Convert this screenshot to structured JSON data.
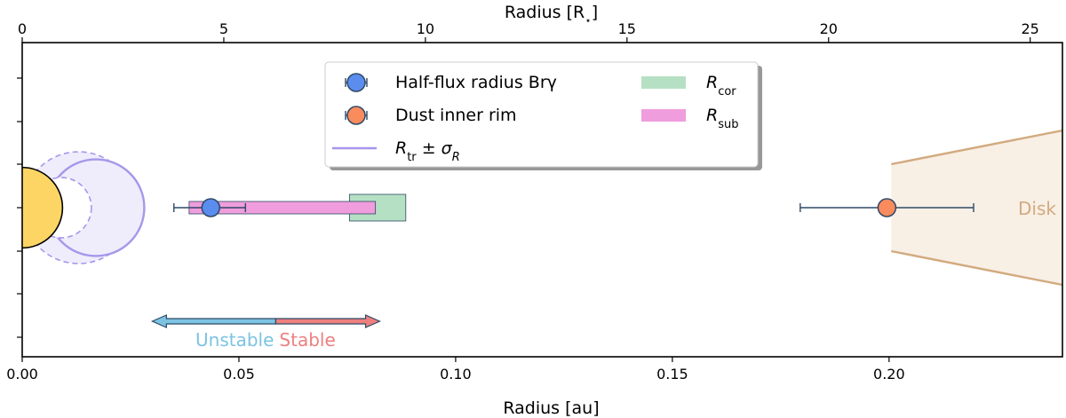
{
  "chart_data": {
    "type": "scatter",
    "xlabel": "Radius [au]",
    "x2label": "Radius [R",
    "x2label_star": "⋆",
    "x2label_close": "]",
    "xlim": [
      0.0,
      0.24
    ],
    "x_ticks": [
      0.0,
      0.05,
      0.1,
      0.15,
      0.2
    ],
    "x_tick_labels": [
      "0.00",
      "0.05",
      "0.10",
      "0.15",
      "0.20"
    ],
    "x2lim": [
      0.0,
      25.8
    ],
    "x2_ticks": [
      0,
      5,
      10,
      15,
      20,
      25
    ],
    "x2_tick_labels": [
      "0",
      "5",
      "10",
      "15",
      "20",
      "25"
    ],
    "colors": {
      "star": "#fcd565",
      "brg": "#5b8def",
      "dust": "#f98b5d",
      "rtr": "#a796ec",
      "rtr_fill": "#efedfc",
      "rcor": "#b6e0c3",
      "rsub": "#ef9ddd",
      "disk": "#d2aa7f",
      "disk_fill": "#f8efe5",
      "errbar": "#2e4a66",
      "unstable": "#7cc3e2",
      "stable": "#ee7f7f"
    },
    "points": [
      {
        "name": "Half-flux radius Brγ",
        "x": 0.0435,
        "xerr": [
          0.035,
          0.0515
        ]
      },
      {
        "name": "Dust inner rim",
        "x": 0.1995,
        "xerr": [
          0.1795,
          0.2195
        ]
      }
    ],
    "r_tr": {
      "center": 0.017,
      "minus": 0.009,
      "plus": 0.025
    },
    "r_cor": [
      0.0755,
      0.0885
    ],
    "r_sub": [
      0.0385,
      0.0815
    ],
    "star_radius": 0.0093,
    "disk_x": [
      0.2005,
      0.24
    ],
    "legend": {
      "position": "upper center",
      "items": [
        {
          "label": "Half-flux radius Brγ"
        },
        {
          "label": "Dust inner rim"
        },
        {
          "label": "R",
          "sub": "tr",
          "tail": " ± σ",
          "tail_sub": "R"
        },
        {
          "label": "R",
          "sub": "cor"
        },
        {
          "label": "R",
          "sub": "sub"
        }
      ]
    },
    "annotations": {
      "disk": "Disk",
      "unstable": "Unstable",
      "stable": "Stable",
      "arrow_x": [
        0.03,
        0.0825
      ],
      "arrow_split": 0.0585
    }
  }
}
